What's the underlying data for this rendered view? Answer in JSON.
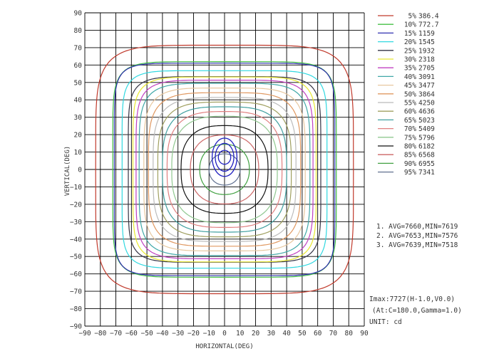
{
  "chart_data": {
    "type": "contour",
    "xlabel": "HORIZONTAL(DEG)",
    "ylabel": "VERTICAL(DEG)",
    "xlim": [
      -90,
      90
    ],
    "ylim": [
      -90,
      90
    ],
    "x_ticks": [
      -90,
      -80,
      -70,
      -60,
      -50,
      -40,
      -30,
      -20,
      -10,
      0,
      10,
      20,
      30,
      40,
      50,
      60,
      70,
      80,
      90
    ],
    "y_ticks": [
      90,
      80,
      70,
      60,
      50,
      40,
      30,
      20,
      10,
      0,
      -10,
      -20,
      -30,
      -40,
      -50,
      -60,
      -70,
      -80,
      -90
    ],
    "grid": true,
    "legend_position": "right",
    "series": [
      {
        "name": "5%",
        "value": "386.4",
        "color": "#c0392b",
        "extent": 83,
        "n": 5.5
      },
      {
        "name": "10%",
        "value": "772.7",
        "color": "#44c044",
        "extent": 72,
        "n": 7
      },
      {
        "name": "15%",
        "value": "1159",
        "color": "#3030b0",
        "extent": 71,
        "n": 8
      },
      {
        "name": "20%",
        "value": "1545",
        "color": "#30d8e0",
        "extent": 66,
        "n": 7
      },
      {
        "name": "25%",
        "value": "1932",
        "color": "#333344",
        "extent": 62,
        "n": 6.5
      },
      {
        "name": "30%",
        "value": "2318",
        "color": "#e8e830",
        "extent": 59,
        "n": 6
      },
      {
        "name": "35%",
        "value": "2705",
        "color": "#c040c0",
        "extent": 57,
        "n": 5.5
      },
      {
        "name": "40%",
        "value": "3091",
        "color": "#40a8a8",
        "extent": 55,
        "n": 5
      },
      {
        "name": "45%",
        "value": "3477",
        "color": "#e8c8a0",
        "extent": 52,
        "n": 4.6
      },
      {
        "name": "50%",
        "value": "3864",
        "color": "#e09860",
        "extent": 49,
        "n": 4.2
      },
      {
        "name": "55%",
        "value": "4250",
        "color": "#bbbbbb",
        "extent": 46,
        "n": 3.8
      },
      {
        "name": "60%",
        "value": "4636",
        "color": "#a0a060",
        "extent": 43,
        "n": 3.5
      },
      {
        "name": "65%",
        "value": "5023",
        "color": "#40a0a0",
        "extent": 40,
        "n": 3.2
      },
      {
        "name": "70%",
        "value": "5409",
        "color": "#e08080",
        "extent": 37,
        "n": 3
      },
      {
        "name": "75%",
        "value": "5796",
        "color": "#90c890",
        "extent": 34,
        "n": 2.8
      },
      {
        "name": "80%",
        "value": "6182",
        "color": "#111111",
        "extent": 28,
        "n": 2.6
      },
      {
        "name": "85%",
        "value": "6568",
        "color": "#cc6666",
        "extent": 22,
        "n": 2.4
      },
      {
        "name": "90%",
        "value": "6955",
        "color": "#40a040",
        "extent": 16,
        "n": 2.2
      },
      {
        "name": "95%",
        "value": "7341",
        "color": "#607090",
        "extent": 10,
        "n": 2.1
      }
    ],
    "annotations": {
      "avg_lines": [
        "1. AVG=7660,MIN=7619",
        "2. AVG=7653,MIN=7576",
        "3. AVG=7639,MIN=7518"
      ],
      "imax": "Imax:7727(H-1.0,V0.0)",
      "at": "(At:C=180.0,Gamma=1.0)",
      "unit": "UNIT: cd"
    },
    "center_marker_color": "#2020c0"
  }
}
